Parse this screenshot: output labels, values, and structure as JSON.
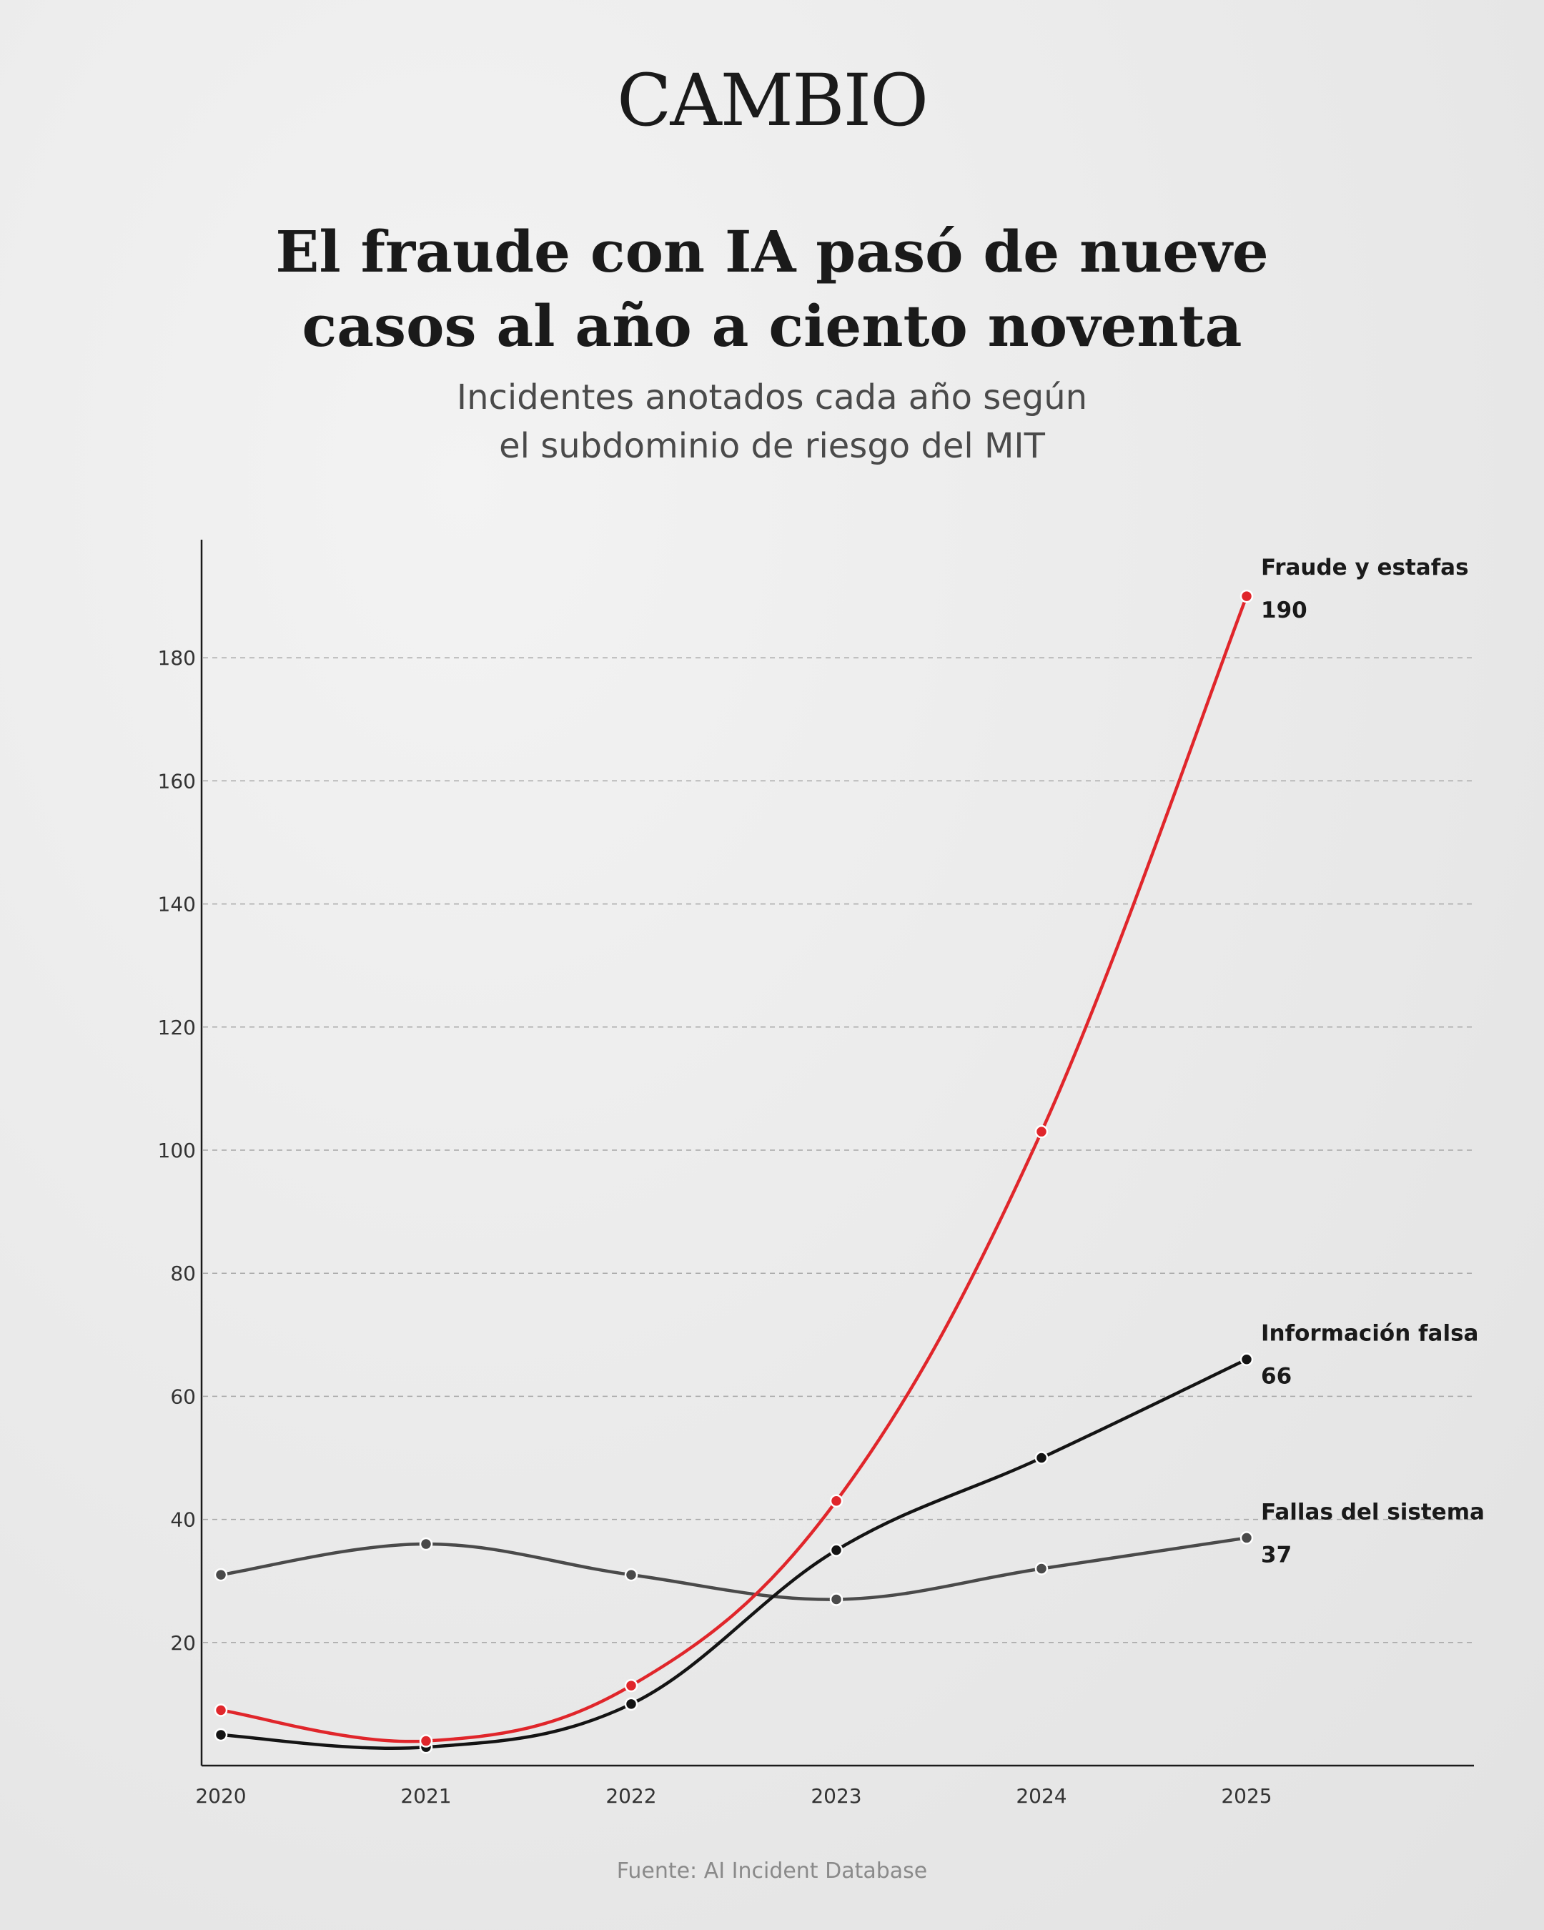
{
  "brand": {
    "logo_text": "CAMBIO"
  },
  "header": {
    "title_line1": "El fraude con IA pasó de nueve",
    "title_line2": "casos al año a ciento noventa",
    "subtitle_line1": "Incidentes anotados cada año según",
    "subtitle_line2": "el subdominio de riesgo del MIT"
  },
  "footer": {
    "source": "Fuente: AI Incident Database"
  },
  "chart_data": {
    "type": "line",
    "x": [
      "2020",
      "2021",
      "2022",
      "2023",
      "2024",
      "2025"
    ],
    "series": [
      {
        "name": "Fraude y estafas",
        "end_label": "190",
        "color": "#e0262b",
        "values": [
          9,
          4,
          13,
          43,
          103,
          190
        ]
      },
      {
        "name": "Información falsa",
        "end_label": "66",
        "color": "#141414",
        "values": [
          5,
          3,
          10,
          35,
          50,
          66
        ]
      },
      {
        "name": "Fallas del sistema",
        "end_label": "37",
        "color": "#4a4a4a",
        "values": [
          31,
          36,
          31,
          27,
          32,
          37
        ]
      }
    ],
    "yticks": [
      "20",
      "40",
      "60",
      "80",
      "100",
      "120",
      "140",
      "160",
      "180"
    ],
    "ylim": [
      0,
      200
    ],
    "grid": true,
    "grid_style": "dashed",
    "legend": "direct labels at line ends",
    "curve": "smooth"
  }
}
